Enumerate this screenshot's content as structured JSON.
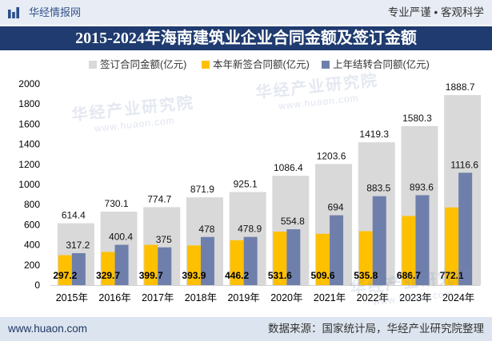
{
  "header": {
    "brand": "华经情报网",
    "slogan": "专业严谨 • 客观科学",
    "logo_icon": "bar-chart-logo-icon"
  },
  "chart_data": {
    "type": "bar",
    "title": "2015-2024年海南建筑业企业合同金额及签订金额",
    "categories": [
      "2015年",
      "2016年",
      "2017年",
      "2018年",
      "2019年",
      "2020年",
      "2021年",
      "2022年",
      "2023年",
      "2024年"
    ],
    "series": [
      {
        "name": "签订合同金额(亿元)",
        "color": "#d9d9d9",
        "values": [
          614.4,
          730.1,
          774.7,
          871.9,
          925.1,
          1086.4,
          1203.6,
          1419.3,
          1580.3,
          1888.7
        ]
      },
      {
        "name": "本年新签合同额(亿元)",
        "color": "#ffc000",
        "values": [
          297.2,
          329.7,
          399.7,
          393.9,
          446.2,
          531.6,
          509.6,
          535.8,
          686.7,
          772.1
        ]
      },
      {
        "name": "上年结转合同额(亿元)",
        "color": "#6f7fab",
        "values": [
          317.2,
          400.4,
          375,
          478,
          478.9,
          554.8,
          694,
          883.5,
          893.6,
          1116.6
        ]
      }
    ],
    "ylim": [
      0,
      2000
    ],
    "yticks": [
      0,
      200,
      400,
      600,
      800,
      1000,
      1200,
      1400,
      1600,
      1800,
      2000
    ],
    "grid": false,
    "legend_position": "top"
  },
  "footer": {
    "website": "www.huaon.com",
    "source": "数据来源：国家统计局，华经产业研究院整理"
  },
  "watermark": {
    "brand": "华经产业研究院",
    "url": "www.huaon.com"
  }
}
